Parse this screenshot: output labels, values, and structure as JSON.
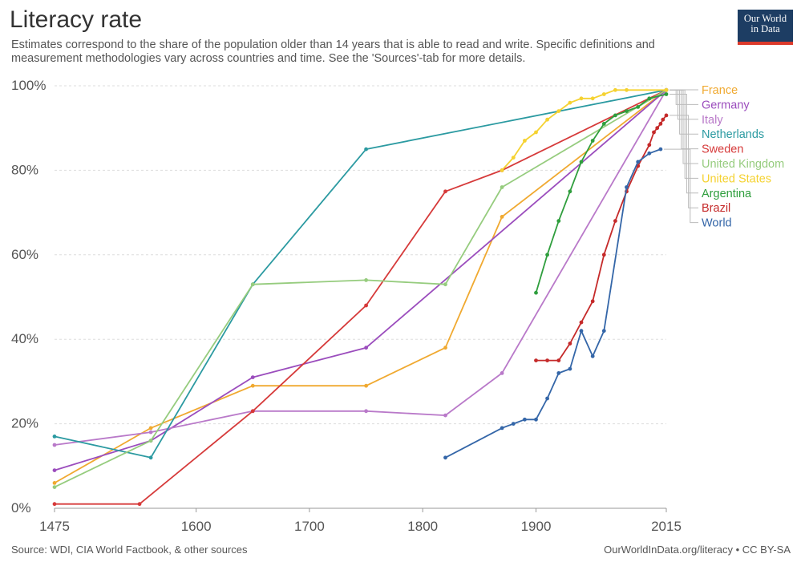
{
  "header": {
    "title": "Literacy rate",
    "subtitle": "Estimates correspond to the share of the population older than 14 years that is able to read and write. Specific definitions and measurement methodologies vary across countries and time. See the 'Sources'-tab for more details."
  },
  "logo": {
    "line1": "Our World",
    "line2": "in Data",
    "background_color": "#1d3d63",
    "accent_color": "#dc3a2b"
  },
  "footer": {
    "source": "Source: WDI, CIA World Factbook, & other sources",
    "credit": "OurWorldInData.org/literacy • CC BY-SA"
  },
  "chart_data": {
    "type": "line",
    "title": "Literacy rate",
    "xlabel": "",
    "ylabel": "",
    "xlim": [
      1475,
      2015
    ],
    "ylim": [
      0,
      100
    ],
    "x_ticks": [
      1475,
      1600,
      1700,
      1800,
      1900,
      2015
    ],
    "x_tick_labels": [
      "1475",
      "1600",
      "1700",
      "1800",
      "1900",
      "2015"
    ],
    "y_ticks": [
      0,
      20,
      40,
      60,
      80,
      100
    ],
    "y_tick_labels": [
      "0%",
      "20%",
      "40%",
      "60%",
      "80%",
      "100%"
    ],
    "grid": "horizontal dashed",
    "legend_position": "right",
    "series": [
      {
        "name": "France",
        "color": "#f0a930",
        "points": [
          [
            1475,
            6
          ],
          [
            1560,
            19
          ],
          [
            1650,
            29
          ],
          [
            1750,
            29
          ],
          [
            1820,
            38
          ],
          [
            1870,
            69
          ],
          [
            2015,
            99
          ]
        ]
      },
      {
        "name": "Germany",
        "color": "#9b4dbd",
        "points": [
          [
            1475,
            9
          ],
          [
            1560,
            16
          ],
          [
            1650,
            31
          ],
          [
            1750,
            38
          ],
          [
            2015,
            99
          ]
        ]
      },
      {
        "name": "Italy",
        "color": "#b979c9",
        "points": [
          [
            1475,
            15
          ],
          [
            1560,
            18
          ],
          [
            1650,
            23
          ],
          [
            1750,
            23
          ],
          [
            1820,
            22
          ],
          [
            1870,
            32
          ],
          [
            2015,
            99
          ]
        ]
      },
      {
        "name": "Netherlands",
        "color": "#2b9aa1",
        "points": [
          [
            1475,
            17
          ],
          [
            1560,
            12
          ],
          [
            1650,
            53
          ],
          [
            1750,
            85
          ],
          [
            2015,
            99
          ]
        ]
      },
      {
        "name": "Sweden",
        "color": "#d63a3a",
        "points": [
          [
            1475,
            1
          ],
          [
            1550,
            1
          ],
          [
            1650,
            23
          ],
          [
            1750,
            48
          ],
          [
            1820,
            75
          ],
          [
            1870,
            80
          ],
          [
            2015,
            99
          ]
        ]
      },
      {
        "name": "United Kingdom",
        "color": "#96cc7e",
        "points": [
          [
            1475,
            5
          ],
          [
            1560,
            16
          ],
          [
            1650,
            53
          ],
          [
            1750,
            54
          ],
          [
            1820,
            53
          ],
          [
            1870,
            76
          ],
          [
            2015,
            99
          ]
        ]
      },
      {
        "name": "United States",
        "color": "#f5d231",
        "points": [
          [
            1870,
            80
          ],
          [
            1880,
            83
          ],
          [
            1890,
            87
          ],
          [
            1900,
            89
          ],
          [
            1910,
            92
          ],
          [
            1920,
            94
          ],
          [
            1930,
            96
          ],
          [
            1940,
            97
          ],
          [
            1950,
            97
          ],
          [
            1960,
            98
          ],
          [
            1970,
            99
          ],
          [
            1980,
            99
          ],
          [
            2015,
            99
          ]
        ]
      },
      {
        "name": "Argentina",
        "color": "#2f9e3d",
        "points": [
          [
            1900,
            51
          ],
          [
            1910,
            60
          ],
          [
            1920,
            68
          ],
          [
            1930,
            75
          ],
          [
            1940,
            82
          ],
          [
            1950,
            87
          ],
          [
            1960,
            91
          ],
          [
            1970,
            93
          ],
          [
            1980,
            94
          ],
          [
            1990,
            95
          ],
          [
            2000,
            97
          ],
          [
            2015,
            98
          ]
        ]
      },
      {
        "name": "Brazil",
        "color": "#c52a2a",
        "points": [
          [
            1900,
            35
          ],
          [
            1910,
            35
          ],
          [
            1920,
            35
          ],
          [
            1930,
            39
          ],
          [
            1940,
            44
          ],
          [
            1950,
            49
          ],
          [
            1960,
            60
          ],
          [
            1970,
            68
          ],
          [
            1980,
            75
          ],
          [
            1990,
            81
          ],
          [
            2000,
            86
          ],
          [
            2004,
            89
          ],
          [
            2007,
            90
          ],
          [
            2010,
            91
          ],
          [
            2012,
            92
          ],
          [
            2015,
            93
          ]
        ]
      },
      {
        "name": "World",
        "color": "#3466a8",
        "points": [
          [
            1820,
            12
          ],
          [
            1870,
            19
          ],
          [
            1880,
            20
          ],
          [
            1890,
            21
          ],
          [
            1900,
            21
          ],
          [
            1910,
            26
          ],
          [
            1920,
            32
          ],
          [
            1930,
            33
          ],
          [
            1940,
            42
          ],
          [
            1950,
            36
          ],
          [
            1960,
            42
          ],
          [
            1980,
            76
          ],
          [
            1990,
            82
          ],
          [
            2000,
            84
          ],
          [
            2010,
            85
          ]
        ]
      }
    ]
  }
}
